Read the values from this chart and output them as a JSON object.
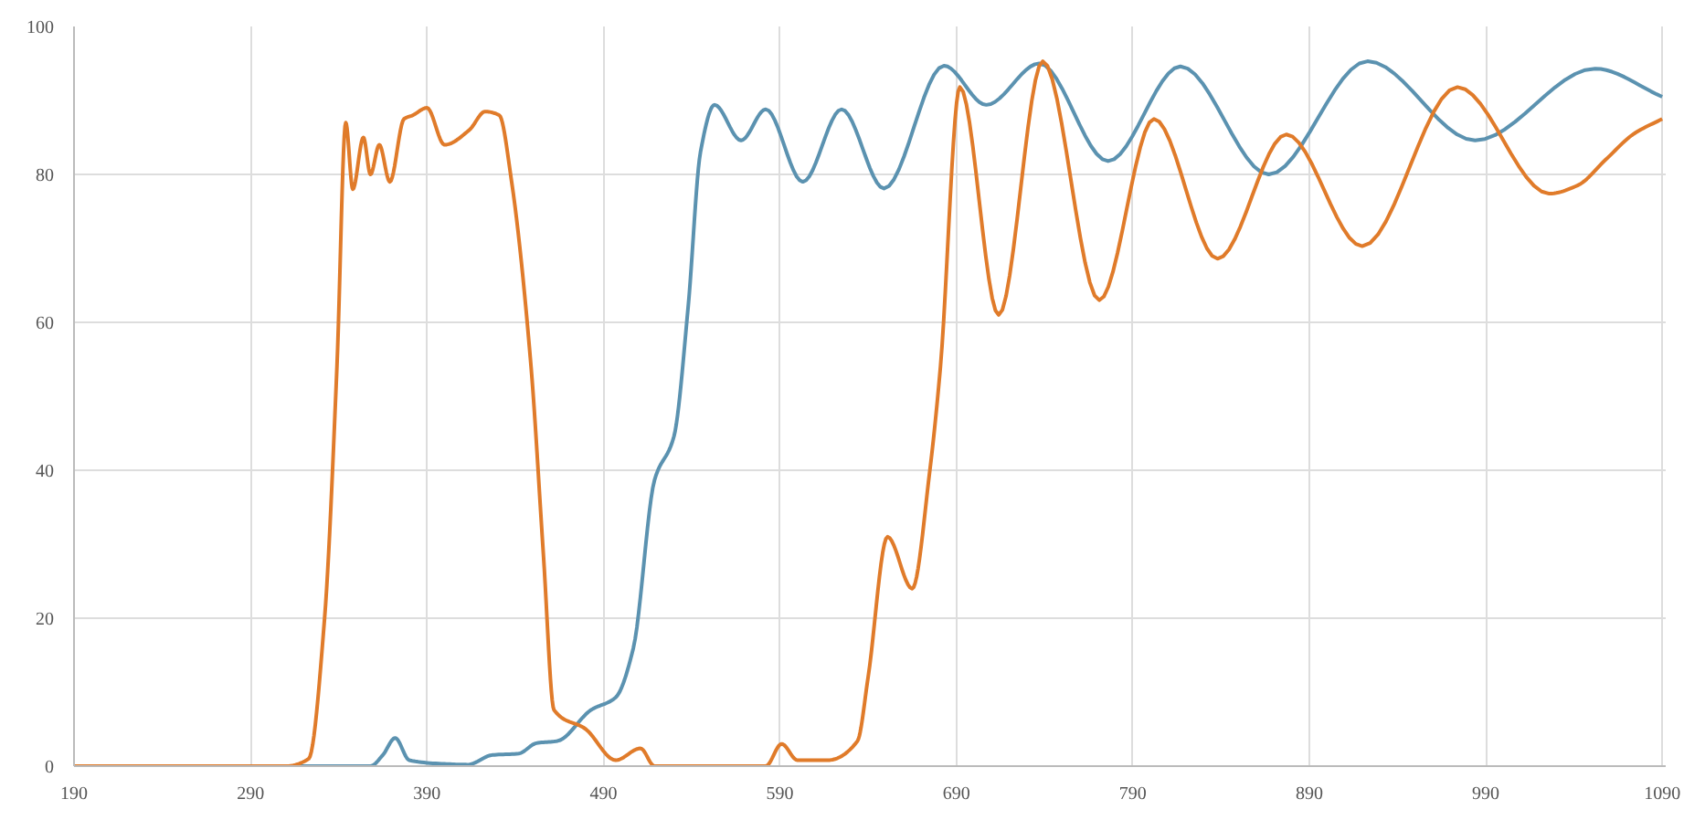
{
  "chart_data": {
    "type": "line",
    "xlim": [
      190,
      1092
    ],
    "ylim": [
      0,
      100
    ],
    "xticks": [
      190,
      290,
      390,
      490,
      590,
      690,
      790,
      890,
      990,
      1090
    ],
    "yticks": [
      0,
      20,
      40,
      60,
      80,
      100
    ],
    "grid": true,
    "marker": "none",
    "line_style": "solid",
    "series": [
      {
        "color": "#5b92b0",
        "x": [
          190,
          300,
          358,
          365,
          372,
          380,
          400,
          413,
          427,
          442,
          452,
          464,
          483,
          497,
          507,
          519,
          530,
          538,
          545,
          553,
          568,
          582,
          603,
          625,
          649,
          683,
          707,
          737,
          776,
          817,
          867,
          923,
          984,
          1052,
          1090
        ],
        "values": [
          0,
          0,
          0,
          1.5,
          3.8,
          0.8,
          0.3,
          0.2,
          1.5,
          1.7,
          3.1,
          3.4,
          7.6,
          9.3,
          16,
          38.7,
          44.6,
          62,
          83,
          89.4,
          84.6,
          88.8,
          79,
          88.8,
          78.1,
          94.7,
          89.4,
          95,
          81.8,
          94.6,
          80,
          95.3,
          84.6,
          94.3,
          90.5
        ]
      },
      {
        "color": "#e07b2a",
        "x": [
          190,
          310,
          323,
          332,
          339,
          344,
          348,
          354,
          358,
          363,
          369,
          377,
          382,
          390,
          400,
          414,
          423,
          431,
          438,
          449,
          456,
          462,
          480,
          497,
          511,
          519,
          582,
          591,
          600,
          617,
          634,
          640,
          651,
          665,
          675,
          681,
          692,
          714,
          739,
          771,
          802,
          838,
          877,
          920,
          974,
          1026,
          1042,
          1058,
          1074,
          1090
        ],
        "values": [
          0,
          0,
          1,
          20,
          54,
          87,
          78,
          85,
          80,
          84,
          79,
          87.5,
          88,
          89,
          84,
          86,
          88.5,
          88,
          79,
          54,
          28.6,
          7.6,
          5,
          0.8,
          2.4,
          0,
          0,
          3,
          0.8,
          0.8,
          3.4,
          12,
          31,
          24,
          40,
          54,
          91.8,
          61,
          95.3,
          63,
          87.5,
          68.6,
          85.4,
          70.3,
          91.8,
          77.4,
          78.5,
          82,
          85.5,
          87.5
        ]
      }
    ]
  }
}
